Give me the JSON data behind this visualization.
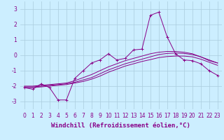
{
  "title": "",
  "xlabel": "Windchill (Refroidissement éolien,°C)",
  "ylabel": "",
  "background_color": "#cceeff",
  "grid_color": "#aaccdd",
  "line_color": "#880088",
  "xlim": [
    -0.5,
    23.5
  ],
  "ylim": [
    -3.5,
    3.5
  ],
  "yticks": [
    -3,
    -2,
    -1,
    0,
    1,
    2,
    3
  ],
  "xticks": [
    0,
    1,
    2,
    3,
    4,
    5,
    6,
    7,
    8,
    9,
    10,
    11,
    12,
    13,
    14,
    15,
    16,
    17,
    18,
    19,
    20,
    21,
    22,
    23
  ],
  "series": [
    {
      "x": [
        0,
        1,
        2,
        3,
        4,
        5,
        6,
        7,
        8,
        9,
        10,
        11,
        12,
        13,
        14,
        15,
        16,
        17,
        18,
        19,
        20,
        21,
        22,
        23
      ],
      "y": [
        -2.1,
        -2.2,
        -1.85,
        -2.1,
        -2.9,
        -2.9,
        -1.5,
        -1.0,
        -0.5,
        -0.3,
        0.1,
        -0.3,
        -0.2,
        0.35,
        0.4,
        2.6,
        2.8,
        1.2,
        0.1,
        -0.3,
        -0.35,
        -0.55,
        -1.0,
        -1.3
      ],
      "marker": "+"
    },
    {
      "x": [
        0,
        1,
        2,
        3,
        4,
        5,
        6,
        7,
        8,
        9,
        10,
        11,
        12,
        13,
        14,
        15,
        16,
        17,
        18,
        19,
        20,
        21,
        22,
        23
      ],
      "y": [
        -2.0,
        -2.0,
        -1.95,
        -1.9,
        -1.85,
        -1.8,
        -1.65,
        -1.45,
        -1.25,
        -1.0,
        -0.75,
        -0.55,
        -0.35,
        -0.2,
        -0.05,
        0.1,
        0.2,
        0.25,
        0.25,
        0.2,
        0.1,
        -0.1,
        -0.35,
        -0.5
      ],
      "marker": null
    },
    {
      "x": [
        0,
        1,
        2,
        3,
        4,
        5,
        6,
        7,
        8,
        9,
        10,
        11,
        12,
        13,
        14,
        15,
        16,
        17,
        18,
        19,
        20,
        21,
        22,
        23
      ],
      "y": [
        -2.05,
        -2.05,
        -2.0,
        -1.95,
        -1.9,
        -1.85,
        -1.75,
        -1.6,
        -1.45,
        -1.2,
        -0.95,
        -0.75,
        -0.55,
        -0.4,
        -0.25,
        -0.1,
        0.05,
        0.12,
        0.15,
        0.12,
        0.05,
        -0.1,
        -0.3,
        -0.5
      ],
      "marker": null
    },
    {
      "x": [
        0,
        1,
        2,
        3,
        4,
        5,
        6,
        7,
        8,
        9,
        10,
        11,
        12,
        13,
        14,
        15,
        16,
        17,
        18,
        19,
        20,
        21,
        22,
        23
      ],
      "y": [
        -2.1,
        -2.1,
        -2.05,
        -2.0,
        -1.95,
        -1.9,
        -1.8,
        -1.7,
        -1.55,
        -1.35,
        -1.1,
        -0.9,
        -0.7,
        -0.55,
        -0.4,
        -0.28,
        -0.15,
        -0.08,
        -0.05,
        -0.05,
        -0.1,
        -0.25,
        -0.45,
        -0.65
      ],
      "marker": null
    }
  ],
  "xlabel_fontsize": 6.5,
  "tick_fontsize": 5.5
}
